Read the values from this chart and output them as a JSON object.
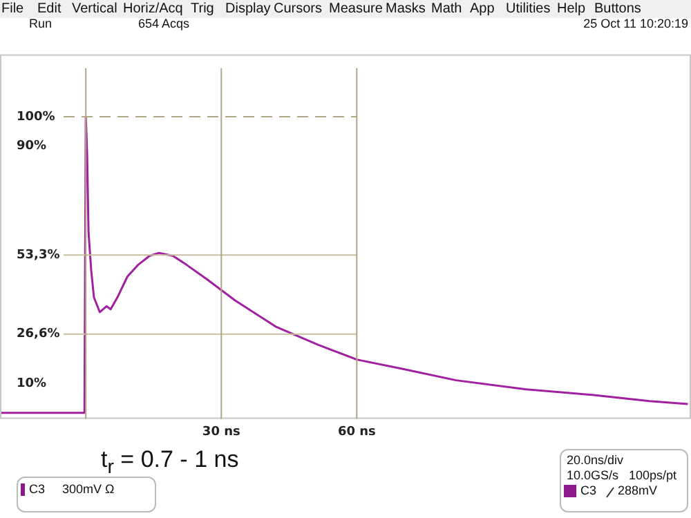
{
  "chart_data": {
    "type": "line",
    "x": [
      -19,
      -0.3,
      0,
      0.3,
      0.6,
      1.2,
      1.8,
      3.1,
      4.6,
      5.5,
      7,
      9.2,
      11.6,
      14.1,
      16.2,
      19.3,
      22.3,
      26.9,
      33,
      42.2,
      51.4,
      60,
      69.7,
      82,
      97.2,
      112.5,
      124.8,
      133.3
    ],
    "values": [
      0,
      0,
      100,
      87,
      61,
      48,
      39,
      34,
      36,
      35,
      39,
      46,
      50,
      53,
      54,
      53,
      50,
      45,
      38,
      29,
      23,
      18,
      15,
      11,
      8,
      6,
      4,
      3
    ],
    "color": "#a020a0",
    "marker": "none",
    "line_style": "solid",
    "xlim": [
      -19,
      134
    ],
    "ylim": [
      -2,
      121
    ],
    "xticks": [
      {
        "value": 0,
        "label": null
      },
      {
        "value": 30,
        "label": "30 ns"
      },
      {
        "value": 60,
        "label": "60 ns"
      }
    ],
    "yticks": [
      {
        "value": 10,
        "label": "10%"
      },
      {
        "value": 26.6,
        "label": "26,6%"
      },
      {
        "value": 53.3,
        "label": "53,3%"
      },
      {
        "value": 90,
        "label": "90%"
      },
      {
        "value": 100,
        "label": "100%"
      }
    ],
    "ref_lines": [
      {
        "axis": "y",
        "value": 100,
        "label": null,
        "color": "#b0a585",
        "line_style": "dashed"
      },
      {
        "axis": "y",
        "value": 53.3,
        "label": null,
        "color": "#c8c0a0",
        "line_style": "solid"
      },
      {
        "axis": "y",
        "value": 26.6,
        "label": null,
        "color": "#c8c0a0",
        "line_style": "solid"
      },
      {
        "axis": "x",
        "value": 0,
        "label": null,
        "color": "#b0a585",
        "line_style": "solid"
      },
      {
        "axis": "x",
        "value": 30,
        "label": null,
        "color": "#b0a585",
        "line_style": "solid"
      },
      {
        "axis": "x",
        "value": 60,
        "label": null,
        "color": "#b0a585",
        "line_style": "solid"
      }
    ],
    "annotations": [
      "File",
      "Edit",
      "Vertical",
      "Horiz/Acq",
      "Trig",
      "Display",
      "Cursors",
      "Measure",
      "Masks",
      "Math",
      "App",
      "Utilities",
      "Help",
      "Buttons",
      "Run",
      "654 Acqs",
      "25 Oct 11 10:20:19",
      "t$_{r}$ = 0.7 - 1 ns",
      "C3",
      "300mV Ω",
      "20.0ns/div",
      "10.0GS/s",
      "100ps/pt",
      "C3",
      "288mV"
    ]
  }
}
